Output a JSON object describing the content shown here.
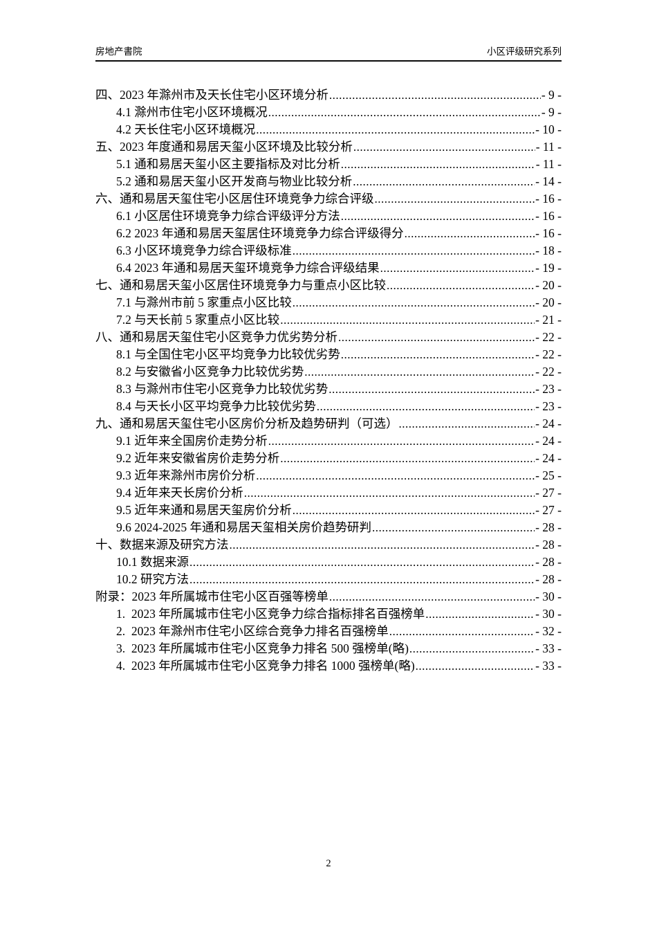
{
  "header": {
    "left": "房地产書院",
    "right": "小区评级研究系列"
  },
  "toc": {
    "entries": [
      {
        "level": 0,
        "label": "四、2023 年滁州市及天长住宅小区环境分析",
        "page": "- 9 -"
      },
      {
        "level": 1,
        "label": "4.1 滁州市住宅小区环境概况",
        "page": "- 9 -"
      },
      {
        "level": 1,
        "label": "4.2 天长住宅小区环境概况",
        "page": "- 10 -"
      },
      {
        "level": 0,
        "label": "五、2023 年度通和易居天玺小区环境及比较分析",
        "page": "- 11 -"
      },
      {
        "level": 1,
        "label": "5.1 通和易居天玺小区主要指标及对比分析",
        "page": "- 11 -"
      },
      {
        "level": 1,
        "label": "5.2 通和易居天玺小区开发商与物业比较分析",
        "page": "- 14 -"
      },
      {
        "level": 0,
        "label": "六、通和易居天玺住宅小区居住环境竞争力综合评级",
        "page": "- 16 -"
      },
      {
        "level": 1,
        "label": "6.1 小区居住环境竞争力综合评级评分方法",
        "page": "- 16 -"
      },
      {
        "level": 1,
        "label": "6.2 2023 年通和易居天玺居住环境竞争力综合评级得分",
        "page": "- 16 -"
      },
      {
        "level": 1,
        "label": "6.3 小区环境竞争力综合评级标准",
        "page": "- 18 -"
      },
      {
        "level": 1,
        "label": "6.4 2023 年通和易居天玺环境竞争力综合评级结果",
        "page": "- 19 -"
      },
      {
        "level": 0,
        "label": "七、通和易居天玺小区居住环境竞争力与重点小区比较",
        "page": "- 20 -"
      },
      {
        "level": 1,
        "label": "7.1 与滁州市前 5 家重点小区比较",
        "page": "- 20 -"
      },
      {
        "level": 1,
        "label": "7.2 与天长前 5 家重点小区比较",
        "page": "- 21 -"
      },
      {
        "level": 0,
        "label": "八、通和易居天玺住宅小区竞争力优劣势分析",
        "page": "- 22 -"
      },
      {
        "level": 1,
        "label": "8.1 与全国住宅小区平均竞争力比较优劣势",
        "page": "- 22 -"
      },
      {
        "level": 1,
        "label": "8.2 与安徽省小区竞争力比较优劣势",
        "page": "- 22 -"
      },
      {
        "level": 1,
        "label": "8.3 与滁州市住宅小区竞争力比较优劣势",
        "page": "- 23 -"
      },
      {
        "level": 1,
        "label": "8.4 与天长小区平均竞争力比较优劣势",
        "page": "- 23 -"
      },
      {
        "level": 0,
        "label": "九、通和易居天玺住宅小区房价分析及趋势研判（可选）",
        "page": "- 24 -"
      },
      {
        "level": 1,
        "label": "9.1 近年来全国房价走势分析",
        "page": "- 24 -"
      },
      {
        "level": 1,
        "label": "9.2 近年来安徽省房价走势分析",
        "page": "- 24 -"
      },
      {
        "level": 1,
        "label": "9.3 近年来滁州市房价分析",
        "page": "- 25 -"
      },
      {
        "level": 1,
        "label": "9.4 近年来天长房价分析",
        "page": "- 27 -"
      },
      {
        "level": 1,
        "label": "9.5 近年来通和易居天玺房价分析",
        "page": "- 27 -"
      },
      {
        "level": 1,
        "label": "9.6 2024-2025 年通和易居天玺相关房价趋势研判",
        "page": "- 28 -"
      },
      {
        "level": 0,
        "label": "十、数据来源及研究方法",
        "page": "- 28 -"
      },
      {
        "level": 1,
        "label": "10.1 数据来源",
        "page": "- 28 -"
      },
      {
        "level": 1,
        "label": "10.2 研究方法",
        "page": "- 28 -"
      },
      {
        "level": 0,
        "label": "附录：2023 年所属城市住宅小区百强等榜单",
        "page": "- 30 -"
      },
      {
        "level": 1,
        "label": "1.  2023 年所属城市住宅小区竞争力综合指标排名百强榜单",
        "page": "- 30 -"
      },
      {
        "level": 1,
        "label": "2.  2023 年滁州市住宅小区综合竞争力排名百强榜单",
        "page": "- 32 -"
      },
      {
        "level": 1,
        "label": "3.  2023 年所属城市住宅小区竞争力排名 500 强榜单(略)",
        "page": "- 33 -"
      },
      {
        "level": 1,
        "label": "4.  2023 年所属城市住宅小区竞争力排名 1000 强榜单(略)",
        "page": "- 33 -"
      }
    ]
  },
  "footer": {
    "page_number": "2"
  }
}
